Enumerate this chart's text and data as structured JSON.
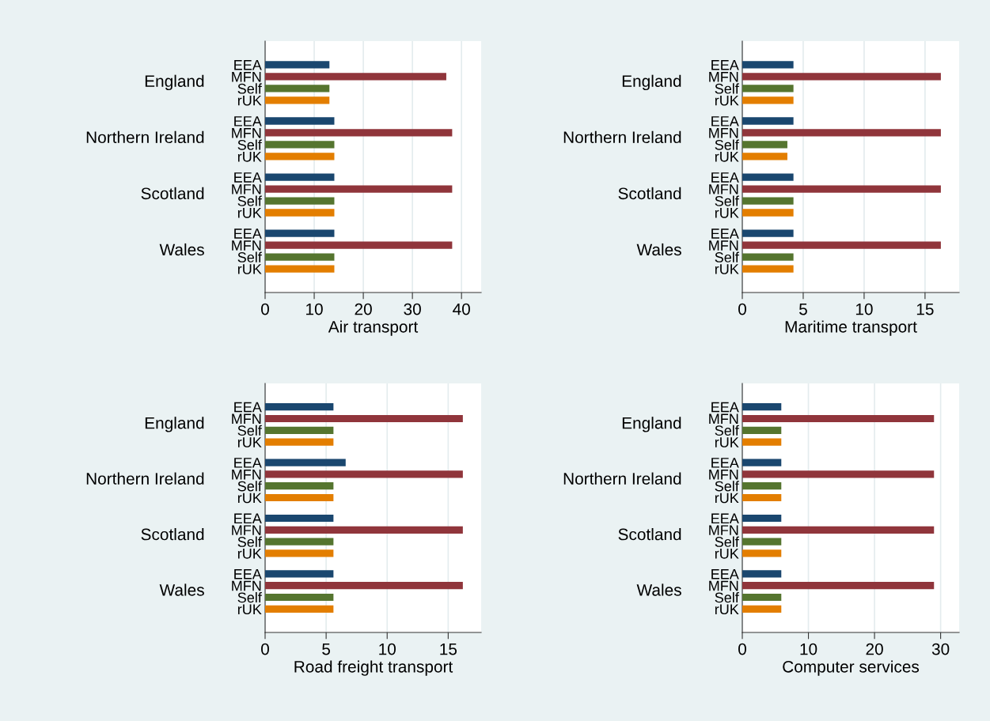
{
  "chart_data": [
    {
      "type": "bar",
      "orientation": "horizontal",
      "xlabel": "Air transport",
      "categories": [
        "England",
        "Northern Ireland",
        "Scotland",
        "Wales"
      ],
      "xlim": [
        0,
        44
      ],
      "xticks": [
        0,
        10,
        20,
        30,
        40
      ],
      "grid": "x",
      "legend": false,
      "series": [
        {
          "name": "EEA",
          "color": "#1a476f",
          "values": [
            13.1,
            14.1,
            14.1,
            14.1
          ]
        },
        {
          "name": "MFN",
          "color": "#90353b",
          "values": [
            36.9,
            38.1,
            38.1,
            38.1
          ]
        },
        {
          "name": "Self",
          "color": "#55752f",
          "values": [
            13.1,
            14.1,
            14.1,
            14.1
          ]
        },
        {
          "name": "rUK",
          "color": "#e37e00",
          "values": [
            13.1,
            14.1,
            14.1,
            14.1
          ]
        }
      ]
    },
    {
      "type": "bar",
      "orientation": "horizontal",
      "xlabel": "Maritime transport",
      "categories": [
        "England",
        "Northern Ireland",
        "Scotland",
        "Wales"
      ],
      "xlim": [
        0,
        17.8
      ],
      "xticks": [
        0,
        5,
        10,
        15
      ],
      "grid": "x",
      "legend": false,
      "series": [
        {
          "name": "EEA",
          "color": "#1a476f",
          "values": [
            4.2,
            4.2,
            4.2,
            4.2
          ]
        },
        {
          "name": "MFN",
          "color": "#90353b",
          "values": [
            16.3,
            16.3,
            16.3,
            16.3
          ]
        },
        {
          "name": "Self",
          "color": "#55752f",
          "values": [
            4.2,
            3.7,
            4.2,
            4.2
          ]
        },
        {
          "name": "rUK",
          "color": "#e37e00",
          "values": [
            4.2,
            3.7,
            4.2,
            4.2
          ]
        }
      ]
    },
    {
      "type": "bar",
      "orientation": "horizontal",
      "xlabel": "Road freight transport",
      "categories": [
        "England",
        "Northern Ireland",
        "Scotland",
        "Wales"
      ],
      "xlim": [
        0,
        17.7
      ],
      "xticks": [
        0,
        5,
        10,
        15
      ],
      "grid": "x",
      "legend": false,
      "series": [
        {
          "name": "EEA",
          "color": "#1a476f",
          "values": [
            5.6,
            6.6,
            5.6,
            5.6
          ]
        },
        {
          "name": "MFN",
          "color": "#90353b",
          "values": [
            16.2,
            16.2,
            16.2,
            16.2
          ]
        },
        {
          "name": "Self",
          "color": "#55752f",
          "values": [
            5.6,
            5.6,
            5.6,
            5.6
          ]
        },
        {
          "name": "rUK",
          "color": "#e37e00",
          "values": [
            5.6,
            5.6,
            5.6,
            5.6
          ]
        }
      ]
    },
    {
      "type": "bar",
      "orientation": "horizontal",
      "xlabel": "Computer services",
      "categories": [
        "England",
        "Northern Ireland",
        "Scotland",
        "Wales"
      ],
      "xlim": [
        0,
        32.8
      ],
      "xticks": [
        0,
        10,
        20,
        30
      ],
      "grid": "x",
      "legend": false,
      "series": [
        {
          "name": "EEA",
          "color": "#1a476f",
          "values": [
            5.9,
            5.9,
            5.9,
            5.9
          ]
        },
        {
          "name": "MFN",
          "color": "#90353b",
          "values": [
            29.0,
            29.0,
            29.0,
            29.0
          ]
        },
        {
          "name": "Self",
          "color": "#55752f",
          "values": [
            5.9,
            5.9,
            5.9,
            5.9
          ]
        },
        {
          "name": "rUK",
          "color": "#e37e00",
          "values": [
            5.9,
            5.9,
            5.9,
            5.9
          ]
        }
      ]
    }
  ]
}
